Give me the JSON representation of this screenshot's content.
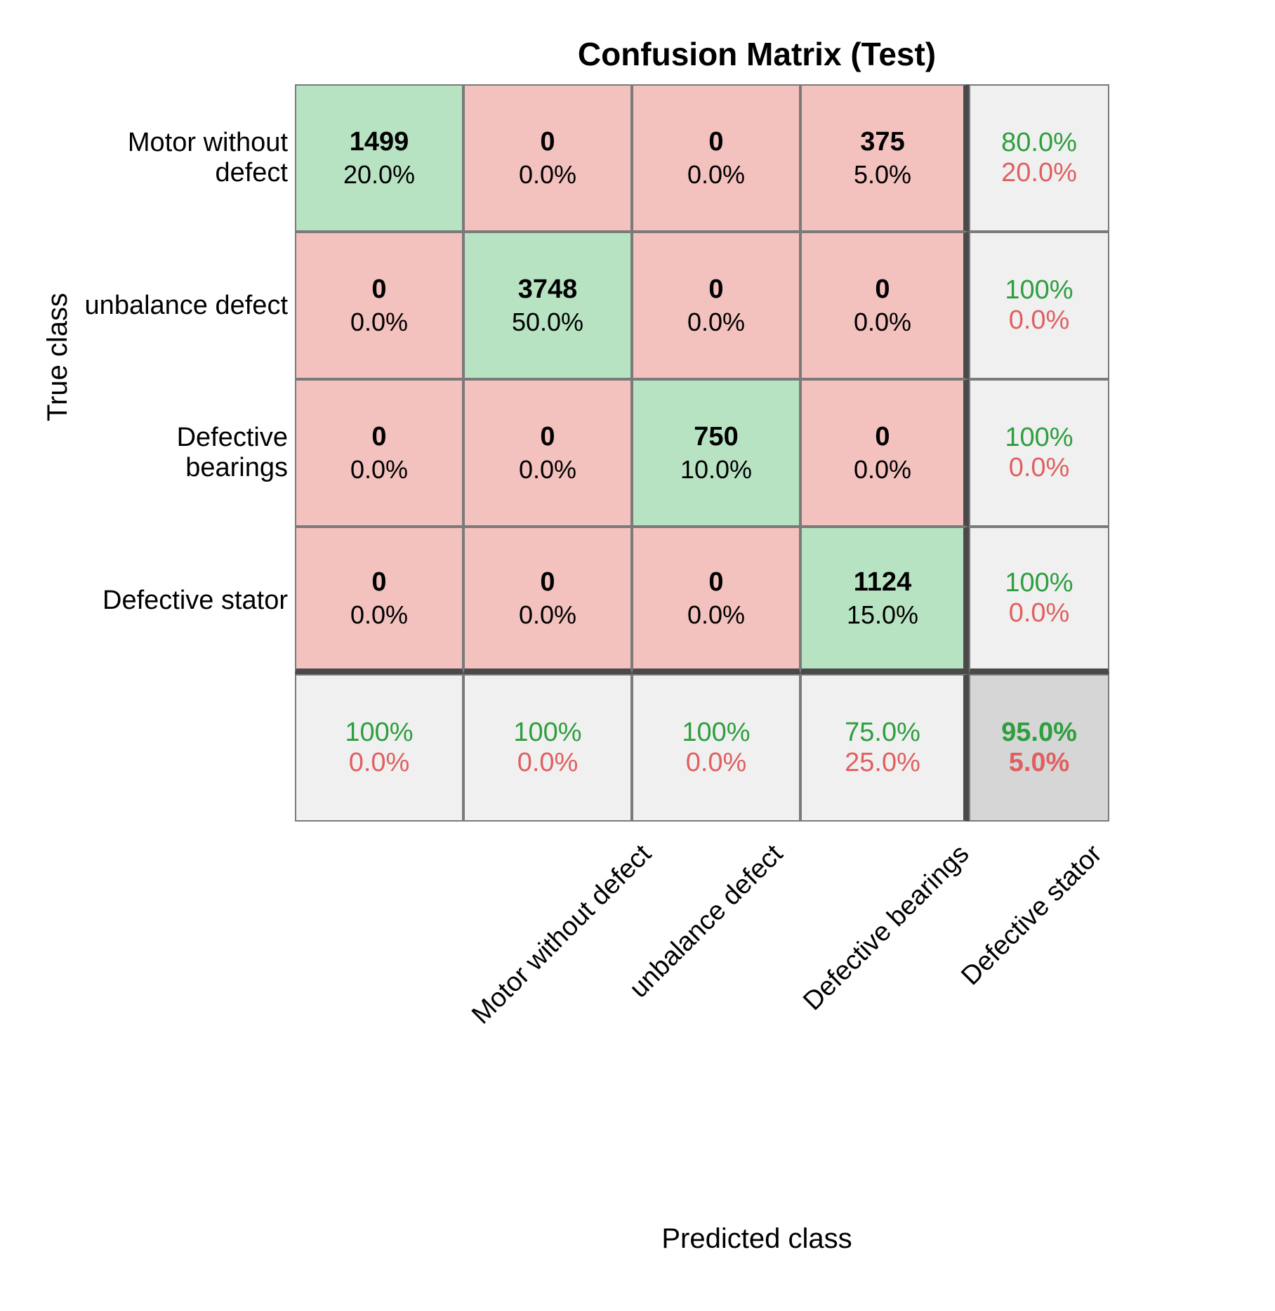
{
  "chart": {
    "type": "confusion_matrix",
    "title": "Confusion Matrix (Test)",
    "title_fontsize": 46,
    "title_fontweight": "bold",
    "y_axis_label": "True class",
    "x_axis_label": "Predicted class",
    "axis_label_fontsize": 40,
    "classes": [
      "Motor without defect",
      "unbalance defect",
      "Defective bearings",
      "Defective stator"
    ],
    "class_label_fontsize": 38,
    "col_label_rotation_deg": -45,
    "counts": [
      [
        1499,
        0,
        0,
        375
      ],
      [
        0,
        3748,
        0,
        0
      ],
      [
        0,
        0,
        750,
        0
      ],
      [
        0,
        0,
        0,
        1124
      ]
    ],
    "percentages": [
      [
        "20.0%",
        "0.0%",
        "0.0%",
        "5.0%"
      ],
      [
        "0.0%",
        "50.0%",
        "0.0%",
        "0.0%"
      ],
      [
        "0.0%",
        "0.0%",
        "10.0%",
        "0.0%"
      ],
      [
        "0.0%",
        "0.0%",
        "0.0%",
        "15.0%"
      ]
    ],
    "count_fontsize": 38,
    "count_fontweight": "bold",
    "pct_fontsize": 36,
    "row_summary": [
      {
        "correct": "80.0%",
        "incorrect": "20.0%"
      },
      {
        "correct": "100%",
        "incorrect": "0.0%"
      },
      {
        "correct": "100%",
        "incorrect": "0.0%"
      },
      {
        "correct": "100%",
        "incorrect": "0.0%"
      }
    ],
    "col_summary": [
      {
        "correct": "100%",
        "incorrect": "0.0%"
      },
      {
        "correct": "100%",
        "incorrect": "0.0%"
      },
      {
        "correct": "100%",
        "incorrect": "0.0%"
      },
      {
        "correct": "75.0%",
        "incorrect": "25.0%"
      }
    ],
    "overall": {
      "correct": "95.0%",
      "incorrect": "5.0%"
    },
    "colors": {
      "background": "#ffffff",
      "diagonal_cell": "#b8e3c3",
      "offdiagonal_cell": "#f3c1be",
      "summary_cell": "#f0f0f0",
      "overall_cell": "#d6d6d6",
      "cell_border": "#7a7a7a",
      "heavy_border": "#4a4a4a",
      "text": "#000000",
      "correct_text": "#2e9e3e",
      "incorrect_text": "#e06060"
    },
    "cell_border_width": 2,
    "heavy_border_width": 8,
    "main_cell_width": 240,
    "main_cell_height": 210,
    "summary_col_width": 200
  }
}
